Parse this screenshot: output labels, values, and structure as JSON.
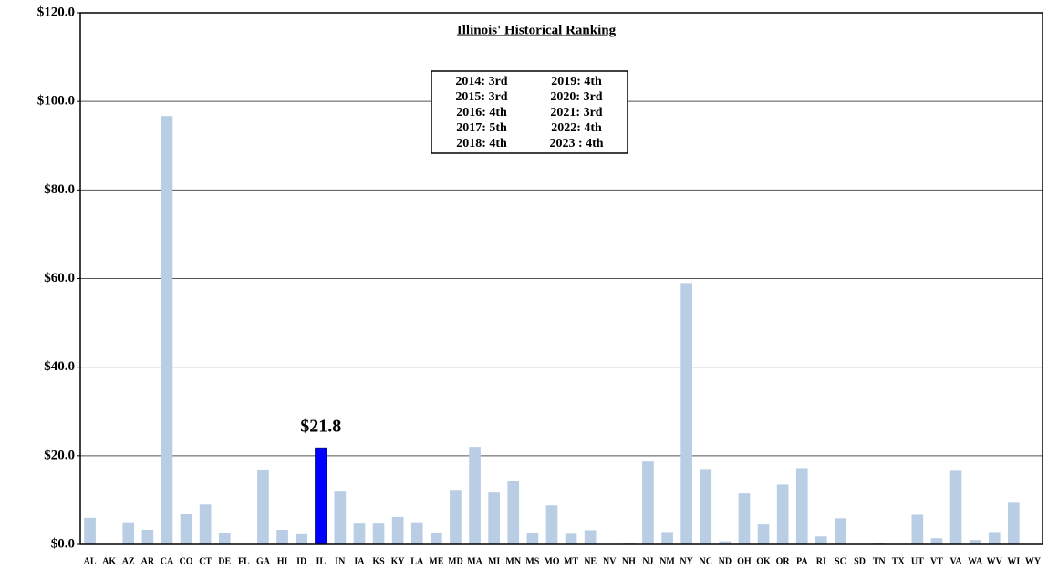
{
  "chart_data": {
    "type": "bar",
    "categories": [
      "AL",
      "AK",
      "AZ",
      "AR",
      "CA",
      "CO",
      "CT",
      "DE",
      "FL",
      "GA",
      "HI",
      "ID",
      "IL",
      "IN",
      "IA",
      "KS",
      "KY",
      "LA",
      "ME",
      "MD",
      "MA",
      "MI",
      "MN",
      "MS",
      "MO",
      "MT",
      "NE",
      "NV",
      "NH",
      "NJ",
      "NM",
      "NY",
      "NC",
      "ND",
      "OH",
      "OK",
      "OR",
      "PA",
      "RI",
      "SC",
      "SD",
      "TN",
      "TX",
      "UT",
      "VT",
      "VA",
      "WA",
      "WV",
      "WI",
      "WY"
    ],
    "values": [
      6.0,
      0,
      4.8,
      3.3,
      96.7,
      6.8,
      9.0,
      2.5,
      0,
      16.9,
      3.3,
      2.3,
      21.8,
      11.9,
      4.7,
      4.7,
      6.2,
      4.8,
      2.7,
      12.3,
      22.0,
      11.7,
      14.2,
      2.6,
      8.8,
      2.4,
      3.2,
      0,
      0.3,
      18.7,
      2.8,
      59.0,
      17.0,
      0.7,
      11.5,
      4.5,
      13.5,
      17.2,
      1.8,
      5.9,
      0,
      0.2,
      0,
      6.7,
      1.4,
      16.8,
      1.0,
      2.8,
      9.4,
      0
    ],
    "value_labels": [
      null,
      null,
      null,
      null,
      null,
      null,
      null,
      null,
      null,
      null,
      null,
      null,
      "$21.8",
      null,
      null,
      null,
      null,
      null,
      null,
      null,
      null,
      null,
      null,
      null,
      null,
      null,
      null,
      null,
      null,
      null,
      null,
      null,
      null,
      null,
      null,
      null,
      null,
      null,
      null,
      null,
      null,
      null,
      null,
      null,
      null,
      null,
      null,
      null,
      null,
      null
    ],
    "color": "#b9cde5",
    "highlight": "IL",
    "highlight_color": "#0000ff",
    "ylim": [
      0,
      120
    ],
    "yticks": [
      {
        "value": 0,
        "label": "$0.0"
      },
      {
        "value": 20,
        "label": "$20.0"
      },
      {
        "value": 40,
        "label": "$40.0"
      },
      {
        "value": 60,
        "label": "$60.0"
      },
      {
        "value": 80,
        "label": "$80.0"
      },
      {
        "value": 100,
        "label": "$100.0"
      },
      {
        "value": 120,
        "label": "$120.0"
      }
    ],
    "grid": true,
    "annotation": {
      "title": "Illinois' Historical Ranking",
      "rows": [
        [
          "2014: 3rd",
          "2019: 4th"
        ],
        [
          "2015: 3rd",
          "2020: 3rd"
        ],
        [
          "2016: 4th",
          "2021: 3rd"
        ],
        [
          "2017: 5th",
          "2022: 4th"
        ],
        [
          "2018: 4th",
          "2023 : 4th"
        ]
      ]
    }
  }
}
